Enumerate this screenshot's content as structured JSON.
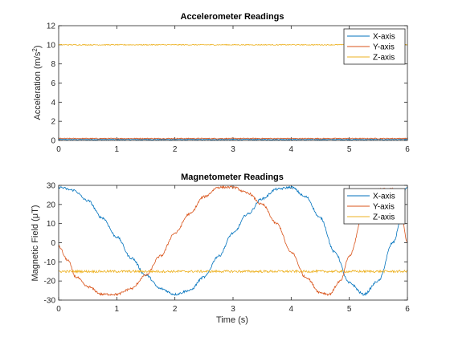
{
  "chart_data": [
    {
      "type": "line",
      "title": "Accelerometer Readings",
      "xlabel": "",
      "ylabel": "Acceleration (m/s²)",
      "ylabel_main": "Acceleration (m/s",
      "ylabel_sup": "2",
      "ylabel_tail": ")",
      "xlim": [
        0,
        6
      ],
      "ylim": [
        0,
        12
      ],
      "xticks": [
        "0",
        "1",
        "2",
        "3",
        "4",
        "5",
        "6"
      ],
      "yticks": [
        "0",
        "2",
        "4",
        "6",
        "8",
        "10",
        "12"
      ],
      "grid": false,
      "legend_position": "top-right",
      "noise_amplitude": 0.05,
      "series": [
        {
          "name": "X-axis",
          "color": "#0072BD",
          "x": [
            0,
            6
          ],
          "y": [
            0.1,
            0.1
          ]
        },
        {
          "name": "Y-axis",
          "color": "#D95319",
          "x": [
            0,
            6
          ],
          "y": [
            0.2,
            0.2
          ]
        },
        {
          "name": "Z-axis",
          "color": "#EDB120",
          "x": [
            0,
            6
          ],
          "y": [
            10.0,
            10.0
          ]
        }
      ]
    },
    {
      "type": "line",
      "title": "Magnetometer Readings",
      "xlabel": "Time (s)",
      "ylabel": "Magnetic Field (μT)",
      "xlim": [
        0,
        6
      ],
      "ylim": [
        -30,
        30
      ],
      "xticks": [
        "0",
        "1",
        "2",
        "3",
        "4",
        "5",
        "6"
      ],
      "yticks": [
        "-30",
        "-20",
        "-10",
        "0",
        "10",
        "20",
        "30"
      ],
      "grid": false,
      "legend_position": "top-right",
      "noise_amplitude": 0.6,
      "series": [
        {
          "name": "X-axis",
          "color": "#0072BD",
          "x": [
            0,
            0.25,
            0.5,
            0.75,
            1.0,
            1.25,
            1.5,
            1.75,
            2.0,
            2.25,
            2.5,
            2.75,
            3.0,
            3.25,
            3.5,
            3.75,
            4.0,
            4.25,
            4.5,
            4.75,
            5.0,
            5.25,
            5.5,
            5.75,
            6.0
          ],
          "y": [
            29,
            27.5,
            22,
            13,
            3,
            -8,
            -17,
            -24,
            -27,
            -25,
            -18,
            -7,
            5,
            15,
            23,
            28,
            29,
            24,
            13,
            -5,
            -21,
            -27,
            -20,
            0,
            29
          ]
        },
        {
          "name": "Y-axis",
          "color": "#D95319",
          "x": [
            0,
            0.15,
            0.3,
            0.5,
            0.75,
            1.0,
            1.25,
            1.5,
            1.75,
            2.0,
            2.25,
            2.5,
            2.75,
            3.0,
            3.25,
            3.5,
            3.75,
            4.0,
            4.25,
            4.5,
            4.65,
            4.85,
            5.0,
            5.25,
            5.5,
            5.75,
            5.9,
            6.0
          ],
          "y": [
            -2,
            -9,
            -18,
            -23,
            -27,
            -27,
            -24,
            -17,
            -7,
            5,
            15,
            24,
            29,
            29,
            26,
            20,
            10,
            -5,
            -18,
            -26,
            -27,
            -20,
            -7,
            15,
            28,
            28,
            14,
            0
          ]
        },
        {
          "name": "Z-axis",
          "color": "#EDB120",
          "x": [
            0,
            6
          ],
          "y": [
            -15,
            -15
          ]
        }
      ]
    }
  ]
}
